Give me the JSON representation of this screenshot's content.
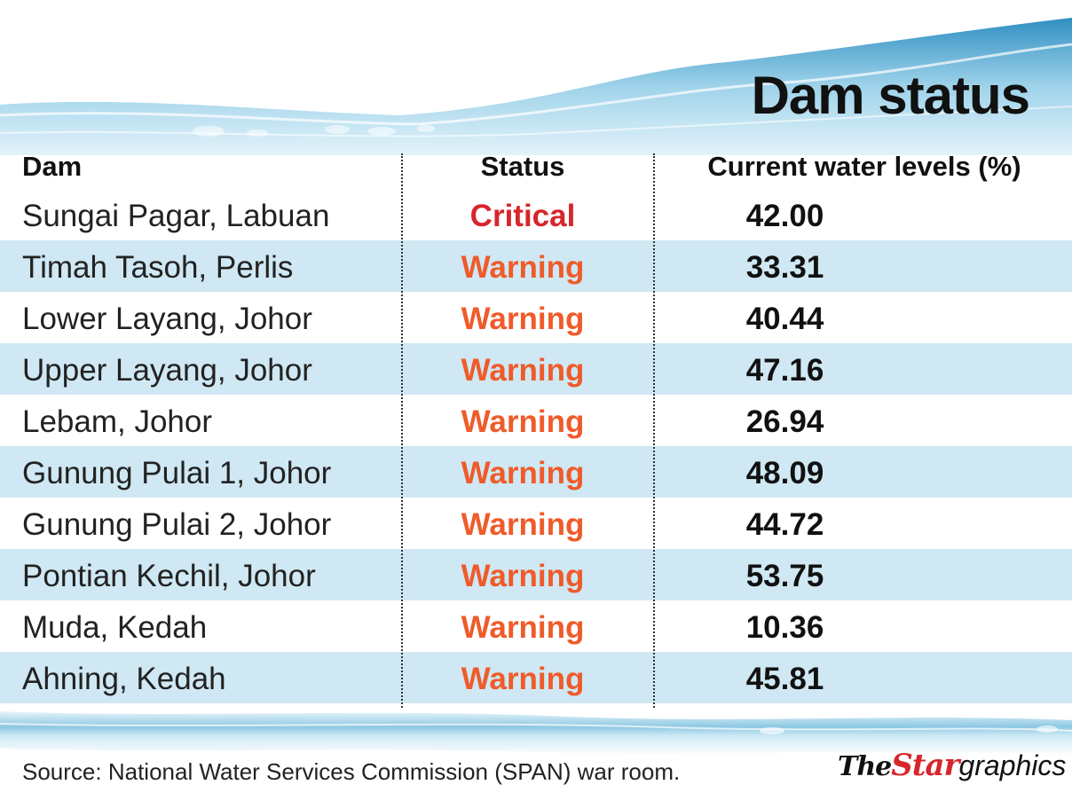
{
  "title": "Dam status",
  "chart_data": {
    "type": "table",
    "title": "Dam status",
    "columns": [
      "Dam",
      "Status",
      "Current water levels (%)"
    ],
    "rows": [
      {
        "dam": "Sungai Pagar, Labuan",
        "status": "Critical",
        "level": "42.00"
      },
      {
        "dam": "Timah Tasoh, Perlis",
        "status": "Warning",
        "level": "33.31"
      },
      {
        "dam": "Lower Layang, Johor",
        "status": "Warning",
        "level": "40.44"
      },
      {
        "dam": "Upper Layang, Johor",
        "status": "Warning",
        "level": "47.16"
      },
      {
        "dam": "Lebam, Johor",
        "status": "Warning",
        "level": "26.94"
      },
      {
        "dam": "Gunung Pulai 1, Johor",
        "status": "Warning",
        "level": "48.09"
      },
      {
        "dam": "Gunung Pulai 2, Johor",
        "status": "Warning",
        "level": "44.72"
      },
      {
        "dam": "Pontian Kechil, Johor",
        "status": "Warning",
        "level": "53.75"
      },
      {
        "dam": "Muda, Kedah",
        "status": "Warning",
        "level": "10.36"
      },
      {
        "dam": "Ahning, Kedah",
        "status": "Warning",
        "level": "45.81"
      }
    ]
  },
  "status_colors": {
    "Critical": "#d6262c",
    "Warning": "#ef5b2a"
  },
  "row_shade_color": "#cfe8f3",
  "water_color": "#5ab4d8",
  "source": "Source: National Water Services Commission (SPAN) war room.",
  "brand": {
    "the": "The",
    "star": "Star",
    "graphics": "graphics"
  }
}
